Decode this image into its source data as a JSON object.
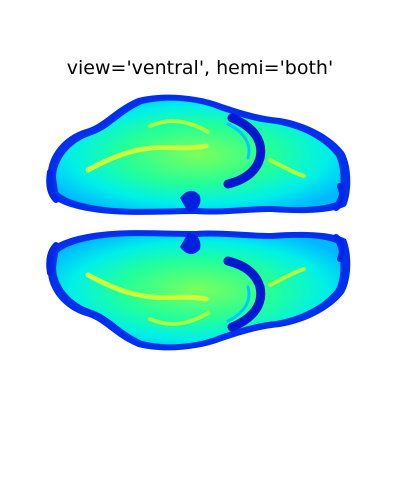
{
  "figure": {
    "title": "view='ventral', hemi='both'",
    "view": "ventral",
    "hemi": "both",
    "background_color": "#ffffff",
    "colormap": "jet",
    "colors": {
      "edge_deep": "#0010c8",
      "edge": "#0040ff",
      "mid": "#00e8ff",
      "body": "#00ffcc",
      "highlight": "#2cff7a",
      "core": "#b8ff3c"
    },
    "hemispheres": [
      "top-hemisphere",
      "bottom-hemisphere"
    ]
  }
}
